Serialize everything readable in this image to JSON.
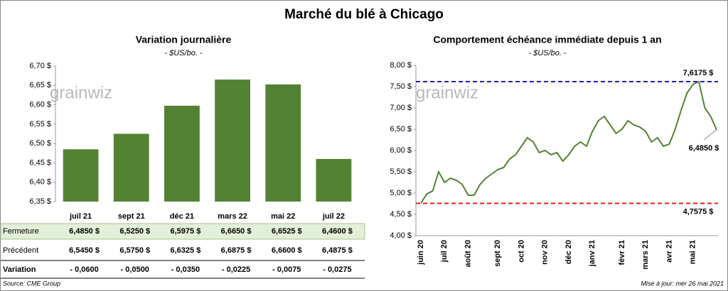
{
  "title": "Marché du blé à Chicago",
  "watermark": "grainwiz",
  "chart_data": [
    {
      "type": "bar",
      "title": "Variation journalière",
      "subtitle": "- $US/bo. -",
      "categories": [
        "juil 21",
        "sept 21",
        "déc 21",
        "mars 22",
        "mai 22",
        "juil 22"
      ],
      "values": [
        6.485,
        6.525,
        6.5975,
        6.665,
        6.6525,
        6.46
      ],
      "color": "#548235",
      "ylim": [
        6.35,
        6.7
      ],
      "yticks": [
        {
          "value": 6.35,
          "label": "6,35 $"
        },
        {
          "value": 6.4,
          "label": "6,40 $"
        },
        {
          "value": 6.45,
          "label": "6,45 $"
        },
        {
          "value": 6.5,
          "label": "6,50 $"
        },
        {
          "value": 6.55,
          "label": "6,55 $"
        },
        {
          "value": 6.6,
          "label": "6,60 $"
        },
        {
          "value": 6.65,
          "label": "6,65 $"
        },
        {
          "value": 6.7,
          "label": "6,70 $"
        }
      ]
    },
    {
      "type": "line",
      "title": "Comportement échéance immédiate depuis 1 an",
      "subtitle": "- $US/bo. -",
      "categories": [
        "juin 20",
        null,
        null,
        null,
        "juil 20",
        null,
        null,
        null,
        "août 20",
        null,
        null,
        null,
        null,
        "sept 20",
        null,
        null,
        null,
        "oct 20",
        null,
        null,
        null,
        "nov 20",
        null,
        null,
        null,
        "déc 20",
        null,
        null,
        null,
        "janv 21",
        null,
        null,
        null,
        null,
        "févr 21",
        null,
        null,
        null,
        "mars 21",
        null,
        null,
        null,
        "avr 21",
        null,
        null,
        null,
        "mai 21",
        null,
        null,
        null,
        null
      ],
      "values": [
        4.76,
        4.98,
        5.05,
        5.5,
        5.25,
        5.35,
        5.3,
        5.2,
        4.95,
        4.95,
        5.2,
        5.35,
        5.45,
        5.55,
        5.6,
        5.8,
        5.9,
        6.1,
        6.3,
        6.2,
        5.95,
        6.0,
        5.9,
        5.95,
        5.75,
        5.9,
        6.1,
        6.2,
        6.1,
        6.45,
        6.7,
        6.8,
        6.6,
        6.4,
        6.5,
        6.7,
        6.6,
        6.55,
        6.45,
        6.2,
        6.3,
        6.1,
        6.15,
        6.5,
        6.95,
        7.35,
        7.55,
        7.6175,
        7.0,
        6.8,
        6.485
      ],
      "color": "#548235",
      "ylim": [
        4,
        8
      ],
      "yticks": [
        {
          "value": 4,
          "label": "4,00 $"
        },
        {
          "value": 4.5,
          "label": "4,50 $"
        },
        {
          "value": 5,
          "label": "5,00 $"
        },
        {
          "value": 5.5,
          "label": "5,50 $"
        },
        {
          "value": 6,
          "label": "6,00 $"
        },
        {
          "value": 6.5,
          "label": "6,50 $"
        },
        {
          "value": 7,
          "label": "7,00 $"
        },
        {
          "value": 7.5,
          "label": "7,50 $"
        },
        {
          "value": 8,
          "label": "8,00 $"
        }
      ],
      "reference_lines": [
        {
          "value": 7.6175,
          "label": "7,6175 $",
          "color": "#2020a8"
        },
        {
          "value": 4.7575,
          "label": "4,7575 $",
          "color": "#e02020"
        }
      ],
      "annotations": [
        {
          "value": 6.485,
          "label": "6,4850 $"
        }
      ]
    }
  ],
  "table": {
    "rows": [
      {
        "label": "Fermeture",
        "cells": [
          "6,4850 $",
          "6,5250 $",
          "6,5975 $",
          "6,6650 $",
          "6,6525 $",
          "6,4600 $"
        ]
      },
      {
        "label": "Précédent",
        "cells": [
          "6,5450 $",
          "6,5750 $",
          "6,6325 $",
          "6,6875 $",
          "6,6600 $",
          "6,4875 $"
        ]
      },
      {
        "label": "Variation",
        "cells": [
          "- 0,0600",
          "- 0,0500",
          "- 0,0350",
          "- 0,0225",
          "- 0,0075",
          "- 0,0275"
        ]
      }
    ]
  },
  "footer": {
    "source": "Source: CME Group",
    "updated": "Mise à jour: mer 26 mai 2021"
  }
}
